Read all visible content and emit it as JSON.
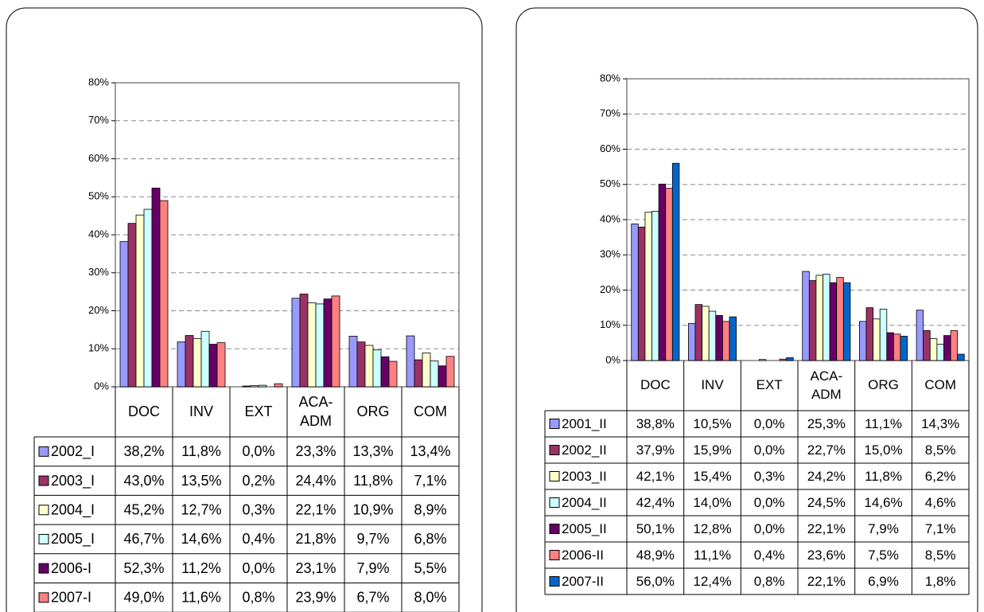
{
  "chart_data": [
    {
      "type": "bar",
      "categories": [
        "DOC",
        "INV",
        "EXT",
        "ACA-ADM",
        "ORG",
        "COM"
      ],
      "ylim": [
        0,
        80
      ],
      "yticks": [
        {
          "value": 0,
          "label": "0%"
        },
        {
          "value": 10,
          "label": "10%"
        },
        {
          "value": 20,
          "label": "20%"
        },
        {
          "value": 30,
          "label": "30%"
        },
        {
          "value": 40,
          "label": "40%"
        },
        {
          "value": 50,
          "label": "50%"
        },
        {
          "value": 60,
          "label": "60%"
        },
        {
          "value": 70,
          "label": "70%"
        },
        {
          "value": 80,
          "label": "80%"
        }
      ],
      "grid": true,
      "series": [
        {
          "name": "2002_I",
          "color": "#9999ff",
          "values": [
            38.2,
            11.8,
            0.0,
            23.3,
            13.3,
            13.4
          ],
          "value_labels": [
            "38,2%",
            "11,8%",
            "0,0%",
            "23,3%",
            "13,3%",
            "13,4%"
          ]
        },
        {
          "name": "2003_I",
          "color": "#993366",
          "values": [
            43.0,
            13.5,
            0.2,
            24.4,
            11.8,
            7.1
          ],
          "value_labels": [
            "43,0%",
            "13,5%",
            "0,2%",
            "24,4%",
            "11,8%",
            "7,1%"
          ]
        },
        {
          "name": "2004_I",
          "color": "#ffffcc",
          "values": [
            45.2,
            12.7,
            0.3,
            22.1,
            10.9,
            8.9
          ],
          "value_labels": [
            "45,2%",
            "12,7%",
            "0,3%",
            "22,1%",
            "10,9%",
            "8,9%"
          ]
        },
        {
          "name": "2005_I",
          "color": "#ccffff",
          "values": [
            46.7,
            14.6,
            0.4,
            21.8,
            9.7,
            6.8
          ],
          "value_labels": [
            "46,7%",
            "14,6%",
            "0,4%",
            "21,8%",
            "9,7%",
            "6,8%"
          ]
        },
        {
          "name": "2006-I",
          "color": "#660066",
          "values": [
            52.3,
            11.2,
            0.0,
            23.1,
            7.9,
            5.5
          ],
          "value_labels": [
            "52,3%",
            "11,2%",
            "0,0%",
            "23,1%",
            "7,9%",
            "5,5%"
          ]
        },
        {
          "name": "2007-I",
          "color": "#ff8080",
          "values": [
            49.0,
            11.6,
            0.8,
            23.9,
            6.7,
            8.0
          ],
          "value_labels": [
            "49,0%",
            "11,6%",
            "0,8%",
            "23,9%",
            "6,7%",
            "8,0%"
          ]
        }
      ]
    },
    {
      "type": "bar",
      "categories": [
        "DOC",
        "INV",
        "EXT",
        "ACA-ADM",
        "ORG",
        "COM"
      ],
      "ylim": [
        0,
        80
      ],
      "yticks": [
        {
          "value": 0,
          "label": "0%"
        },
        {
          "value": 10,
          "label": "10%"
        },
        {
          "value": 20,
          "label": "20%"
        },
        {
          "value": 30,
          "label": "30%"
        },
        {
          "value": 40,
          "label": "40%"
        },
        {
          "value": 50,
          "label": "50%"
        },
        {
          "value": 60,
          "label": "60%"
        },
        {
          "value": 70,
          "label": "70%"
        },
        {
          "value": 80,
          "label": "80%"
        }
      ],
      "grid": true,
      "series": [
        {
          "name": "2001_II",
          "color": "#9999ff",
          "values": [
            38.8,
            10.5,
            0.0,
            25.3,
            11.1,
            14.3
          ],
          "value_labels": [
            "38,8%",
            "10,5%",
            "0,0%",
            "25,3%",
            "11,1%",
            "14,3%"
          ]
        },
        {
          "name": "2002_II",
          "color": "#993366",
          "values": [
            37.9,
            15.9,
            0.0,
            22.7,
            15.0,
            8.5
          ],
          "value_labels": [
            "37,9%",
            "15,9%",
            "0,0%",
            "22,7%",
            "15,0%",
            "8,5%"
          ]
        },
        {
          "name": "2003_II",
          "color": "#ffffcc",
          "values": [
            42.1,
            15.4,
            0.3,
            24.2,
            11.8,
            6.2
          ],
          "value_labels": [
            "42,1%",
            "15,4%",
            "0,3%",
            "24,2%",
            "11,8%",
            "6,2%"
          ]
        },
        {
          "name": "2004_II",
          "color": "#ccffff",
          "values": [
            42.4,
            14.0,
            0.0,
            24.5,
            14.6,
            4.6
          ],
          "value_labels": [
            "42,4%",
            "14,0%",
            "0,0%",
            "24,5%",
            "14,6%",
            "4,6%"
          ]
        },
        {
          "name": "2005_II",
          "color": "#660066",
          "values": [
            50.1,
            12.8,
            0.0,
            22.1,
            7.9,
            7.1
          ],
          "value_labels": [
            "50,1%",
            "12,8%",
            "0,0%",
            "22,1%",
            "7,9%",
            "7,1%"
          ]
        },
        {
          "name": "2006-II",
          "color": "#ff8080",
          "values": [
            48.9,
            11.1,
            0.4,
            23.6,
            7.5,
            8.5
          ],
          "value_labels": [
            "48,9%",
            "11,1%",
            "0,4%",
            "23,6%",
            "7,5%",
            "8,5%"
          ]
        },
        {
          "name": "2007-II",
          "color": "#0066cc",
          "values": [
            56.0,
            12.4,
            0.8,
            22.1,
            6.9,
            1.8
          ],
          "value_labels": [
            "56,0%",
            "12,4%",
            "0,8%",
            "22,1%",
            "6,9%",
            "1,8%"
          ]
        }
      ]
    }
  ]
}
